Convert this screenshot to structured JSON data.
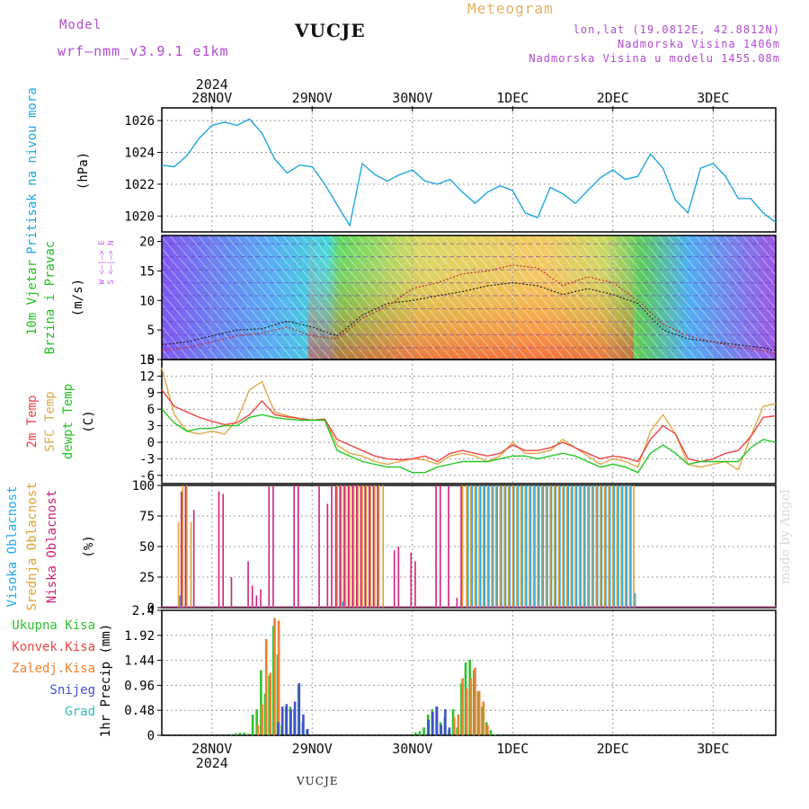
{
  "header": {
    "model_label": "Model",
    "model_version": "wrf–nmm_v3.9.1  e1km",
    "station_title": "VUCJE",
    "meteogram_label": "Meteogram",
    "coords": "lon,lat (19.0812E, 42.8812N)",
    "elevation": "Nadmorska Visina 1406m",
    "model_elevation": "Nadmorska Visina u modelu 1455.08m"
  },
  "footer": {
    "station": "VUCJE",
    "made_by": "made by Angel"
  },
  "colors": {
    "pressure": "#1ea6e0",
    "t2m": "#ee4444",
    "tsfc": "#e0a848",
    "dewpt": "#22c822",
    "high_cloud": "#20a8f0",
    "mid_cloud": "#e0a030",
    "low_cloud": "#d0207a",
    "total_precip": "#30c030",
    "conv_precip": "#ee4444",
    "frozen_precip": "#f08030",
    "snow": "#4050d0",
    "hail": "#30c0c0",
    "wind_label": "#20c020",
    "wind_axis": "#c060e0"
  },
  "chart_data": [
    {
      "type": "line",
      "panel": "pressure",
      "ylabel_name": "Pritisak na nivou mora",
      "ylabel_unit": "(hPa)",
      "ylim": [
        1019.0,
        1026.8
      ],
      "yticks": [
        "1020",
        "1022",
        "1024",
        "1026"
      ],
      "ytick_values": [
        1020,
        1022,
        1024,
        1026
      ],
      "x_top_year": "2024",
      "x_top_labels": [
        "28NOV",
        "29NOV",
        "30NOV",
        "1DEC",
        "2DEC",
        "3DEC"
      ],
      "x_bottom_labels": [
        "28NOV",
        "29NOV",
        "30NOV",
        "1DEC",
        "2DEC",
        "3DEC"
      ],
      "x_bottom_year": "2024",
      "grid": true,
      "x_hours": [
        0,
        3,
        6,
        9,
        12,
        15,
        18,
        21,
        24,
        27,
        30,
        33,
        36,
        39,
        42,
        45,
        48,
        51,
        54,
        57,
        60,
        63,
        66,
        69,
        72,
        75,
        78,
        81,
        84,
        87,
        90,
        93,
        96,
        99,
        102,
        105,
        108,
        111,
        114,
        117,
        120,
        123,
        126,
        129,
        132,
        135,
        138,
        141,
        144,
        147
      ],
      "series": [
        {
          "values": [
            1023.2,
            1023.1,
            1023.8,
            1024.9,
            1025.7,
            1025.9,
            1025.7,
            1026.1,
            1025.2,
            1023.6,
            1022.7,
            1023.2,
            1023.1,
            1022.0,
            1020.7,
            1019.4,
            1023.3,
            1022.6,
            1022.2,
            1022.6,
            1022.9,
            1022.2,
            1022.0,
            1022.3,
            1021.5,
            1020.8,
            1021.5,
            1021.9,
            1021.6,
            1020.2,
            1019.9,
            1021.8,
            1021.4,
            1020.8,
            1021.6,
            1022.4,
            1022.9,
            1022.3,
            1022.5,
            1023.9,
            1023.0,
            1021.0,
            1020.2,
            1023.0,
            1023.3,
            1022.5,
            1021.1,
            1021.1,
            1020.2,
            1019.6
          ]
        }
      ]
    },
    {
      "type": "line",
      "panel": "wind",
      "ylabel_name": "10m Vjetar",
      "ylabel_name2": "Brzina i Pravac",
      "ylabel_unit": "(m/s)",
      "compass_label": "W <–|–> E",
      "compass_label2": "S <–|–> N",
      "ylim": [
        0,
        21
      ],
      "yticks": [
        "0",
        "5",
        "10",
        "15",
        "20"
      ],
      "ytick_values": [
        0,
        5,
        10,
        15,
        20
      ],
      "x_hours": [
        0,
        6,
        12,
        18,
        24,
        30,
        36,
        42,
        48,
        54,
        60,
        66,
        72,
        78,
        84,
        90,
        96,
        102,
        108,
        114,
        120,
        126,
        132,
        138,
        144,
        147
      ],
      "series": [
        {
          "values": [
            2.5,
            3.0,
            4.0,
            5.0,
            5.2,
            6.5,
            5.5,
            4.0,
            7.5,
            9.5,
            10.0,
            10.8,
            11.5,
            12.5,
            13.0,
            12.5,
            11.0,
            12.0,
            11.0,
            9.5,
            5.0,
            3.5,
            3.0,
            2.5,
            2.0,
            1.5
          ]
        },
        {
          "values": [
            1.5,
            2.0,
            3.0,
            4.0,
            4.5,
            5.5,
            4.0,
            3.5,
            7.0,
            9.0,
            12.0,
            13.0,
            14.5,
            15.0,
            16.0,
            15.5,
            12.5,
            14.0,
            13.0,
            10.0,
            6.0,
            4.0,
            3.0,
            2.0,
            1.5,
            1.0
          ]
        }
      ]
    },
    {
      "type": "line",
      "panel": "temperature",
      "ylabel_name": "2m Temp",
      "ylabel_name2": "SFC Temp",
      "ylabel_name3": "dewpt Temp",
      "ylabel_unit": "(C)",
      "ylim": [
        -7.5,
        15
      ],
      "yticks": [
        "-6",
        "-3",
        "0",
        "3",
        "6",
        "9",
        "12",
        "15"
      ],
      "ytick_values": [
        -6,
        -3,
        0,
        3,
        6,
        9,
        12,
        15
      ],
      "x_hours": [
        0,
        3,
        6,
        9,
        12,
        15,
        18,
        21,
        24,
        27,
        30,
        33,
        36,
        39,
        42,
        45,
        48,
        51,
        54,
        57,
        60,
        63,
        66,
        69,
        72,
        75,
        78,
        81,
        84,
        87,
        90,
        93,
        96,
        99,
        102,
        105,
        108,
        111,
        114,
        117,
        120,
        123,
        126,
        129,
        132,
        135,
        138,
        141,
        144,
        147
      ],
      "series": [
        {
          "name": "2m Temp",
          "values": [
            9.5,
            6.5,
            5.5,
            4.5,
            3.8,
            3.2,
            3.5,
            5.0,
            7.5,
            5.0,
            4.6,
            4.3,
            4.0,
            4.2,
            0.5,
            -0.5,
            -1.5,
            -2.5,
            -3.0,
            -3.2,
            -3.0,
            -2.5,
            -3.5,
            -2.0,
            -1.5,
            -2.0,
            -2.5,
            -2.0,
            -0.5,
            -1.5,
            -1.5,
            -1.0,
            0.0,
            -1.0,
            -2.0,
            -3.0,
            -2.5,
            -2.8,
            -3.5,
            0.5,
            3.0,
            1.5,
            -3.0,
            -3.5,
            -3.0,
            -2.0,
            -1.5,
            1.0,
            4.5,
            4.8
          ]
        },
        {
          "name": "SFC Temp",
          "values": [
            13.5,
            5.0,
            2.0,
            1.5,
            2.0,
            1.5,
            4.0,
            9.5,
            11.0,
            5.5,
            4.8,
            4.3,
            4.0,
            4.2,
            -0.5,
            -2.0,
            -2.5,
            -3.5,
            -4.0,
            -3.5,
            -3.0,
            -3.2,
            -4.0,
            -2.5,
            -2.0,
            -2.5,
            -3.5,
            -2.5,
            0.0,
            -2.0,
            -2.0,
            -1.5,
            0.5,
            -1.0,
            -2.5,
            -4.0,
            -3.0,
            -3.5,
            -4.5,
            2.0,
            5.0,
            1.5,
            -4.0,
            -4.5,
            -4.0,
            -3.5,
            -5.0,
            1.0,
            6.5,
            7.0
          ]
        },
        {
          "name": "dewpt Temp",
          "values": [
            6.0,
            3.5,
            2.0,
            2.5,
            2.5,
            3.0,
            3.0,
            4.5,
            5.0,
            4.5,
            4.2,
            4.0,
            4.0,
            4.0,
            -1.5,
            -2.5,
            -3.5,
            -4.0,
            -4.5,
            -4.5,
            -5.5,
            -5.5,
            -4.5,
            -4.0,
            -3.5,
            -3.5,
            -3.5,
            -3.0,
            -2.5,
            -2.5,
            -3.0,
            -2.5,
            -2.0,
            -2.5,
            -3.5,
            -4.5,
            -4.0,
            -4.5,
            -5.5,
            -2.0,
            -0.5,
            -2.0,
            -4.0,
            -3.5,
            -3.5,
            -3.5,
            -3.5,
            -1.0,
            0.5,
            0.0
          ]
        }
      ]
    },
    {
      "type": "bar",
      "panel": "clouds",
      "ylabel_name": "Visoka Oblacnost",
      "ylabel_name2": "Srednja Oblacnost",
      "ylabel_name3": "Niska Oblacnost",
      "ylabel_unit": "(%)",
      "ylim": [
        0,
        100
      ],
      "yticks": [
        "0",
        "25",
        "50",
        "75",
        "100"
      ],
      "ytick_values": [
        0,
        25,
        50,
        75,
        100
      ],
      "series": [
        {
          "name": "Niska Oblacnost",
          "hours": [
            5,
            6,
            8,
            14,
            15,
            17,
            21,
            22,
            23,
            24,
            26,
            27,
            32,
            33,
            38,
            40,
            41,
            42,
            43,
            44,
            45,
            46,
            47,
            48,
            49,
            50,
            51,
            52,
            56,
            57,
            60,
            61,
            66,
            67,
            69,
            71,
            72
          ],
          "values": [
            95,
            100,
            80,
            95,
            93,
            25,
            38,
            18,
            10,
            15,
            100,
            100,
            100,
            100,
            100,
            85,
            100,
            100,
            100,
            100,
            100,
            100,
            100,
            100,
            100,
            100,
            100,
            100,
            47,
            50,
            45,
            38,
            100,
            100,
            100,
            8,
            100
          ]
        },
        {
          "name": "Srednja Oblacnost",
          "hours": [
            4,
            5,
            6,
            7,
            42,
            43,
            44,
            45,
            46,
            47,
            48,
            49,
            50,
            51,
            52,
            53,
            72,
            73,
            74,
            75,
            76,
            77,
            78,
            79,
            80,
            81,
            82,
            83,
            84,
            85,
            86,
            87,
            88,
            89,
            90,
            91,
            92,
            93,
            94,
            95,
            96,
            97,
            98,
            99,
            100,
            101,
            102,
            103,
            104,
            105,
            106,
            107,
            108,
            109,
            110,
            111,
            112,
            113
          ],
          "values": [
            70,
            100,
            100,
            70,
            100,
            100,
            100,
            100,
            100,
            100,
            100,
            100,
            100,
            100,
            100,
            100,
            100,
            100,
            100,
            100,
            100,
            100,
            100,
            100,
            100,
            100,
            100,
            100,
            100,
            100,
            100,
            100,
            100,
            100,
            100,
            100,
            100,
            100,
            100,
            100,
            100,
            100,
            100,
            100,
            100,
            100,
            100,
            100,
            100,
            100,
            100,
            100,
            100,
            100,
            100,
            100,
            100,
            100
          ]
        },
        {
          "name": "Visoka Oblacnost",
          "hours": [
            4,
            43,
            73,
            74,
            75,
            76,
            77,
            78,
            79,
            80,
            81,
            82,
            83,
            84,
            85,
            86,
            87,
            88,
            89,
            90,
            91,
            92,
            93,
            94,
            95,
            96,
            97,
            98,
            99,
            100,
            101,
            102,
            103,
            104,
            105,
            106,
            107,
            108,
            109,
            110,
            111,
            112,
            113
          ],
          "values": [
            10,
            5,
            100,
            100,
            100,
            100,
            100,
            100,
            100,
            100,
            100,
            100,
            100,
            100,
            100,
            100,
            100,
            100,
            100,
            100,
            100,
            100,
            100,
            100,
            100,
            100,
            100,
            100,
            100,
            100,
            100,
            100,
            100,
            100,
            100,
            100,
            100,
            100,
            100,
            100,
            100,
            100,
            12
          ]
        }
      ]
    },
    {
      "type": "bar",
      "panel": "precipitation",
      "ylabel_name": "1hr Precip",
      "ylabel_unit": "(mm)",
      "legend": [
        "Ukupna Kisa",
        "Konvek.Kisa",
        "Zaledj.Kisa",
        "Snijeg",
        "Grad"
      ],
      "ylim": [
        0,
        2.4
      ],
      "yticks": [
        "0",
        "0.48",
        "0.96",
        "1.44",
        "1.92",
        "2.4"
      ],
      "ytick_values": [
        0,
        0.48,
        0.96,
        1.44,
        1.92,
        2.4
      ],
      "series": [
        {
          "name": "Ukupna Kisa",
          "hours": [
            17,
            18,
            19,
            20,
            21,
            22,
            23,
            24,
            25,
            26,
            27,
            28,
            29,
            30,
            31,
            32,
            33,
            34,
            35,
            60,
            61,
            62,
            63,
            64,
            65,
            66,
            67,
            68,
            69,
            70,
            71,
            72,
            73,
            74,
            75,
            76,
            77,
            78,
            79,
            80,
            81,
            82,
            83
          ],
          "values": [
            0.02,
            0.04,
            0.05,
            0.05,
            0.03,
            0.4,
            0.5,
            1.25,
            0.8,
            1.15,
            2.1,
            1.55,
            0.2,
            0.55,
            0.55,
            0.5,
            0.95,
            0.25,
            0.1,
            0.02,
            0.05,
            0.08,
            0.15,
            0.4,
            0.5,
            0.55,
            0.25,
            0.35,
            0.1,
            0.5,
            0.15,
            1.0,
            1.4,
            1.45,
            1.25,
            0.85,
            0.55,
            0.25,
            0.1,
            0.02,
            0.02,
            0.0,
            0.0
          ]
        },
        {
          "name": "Zaledj.Kisa",
          "hours": [
            23,
            24,
            25,
            26,
            27,
            28,
            70,
            71,
            72,
            73,
            74,
            75,
            76,
            77,
            78
          ],
          "values": [
            0.2,
            0.6,
            1.85,
            1.2,
            2.25,
            2.2,
            0.35,
            0.4,
            1.1,
            0.9,
            1.1,
            1.3,
            0.85,
            0.65,
            0.2
          ]
        },
        {
          "name": "Snijeg",
          "hours": [
            28,
            29,
            30,
            31,
            32,
            33,
            34,
            35,
            64,
            65,
            66,
            67,
            68,
            69
          ],
          "values": [
            0.25,
            0.55,
            0.6,
            0.5,
            0.65,
            1.0,
            0.4,
            0.12,
            0.3,
            0.45,
            0.55,
            0.2,
            0.5,
            0.15
          ]
        }
      ]
    }
  ]
}
